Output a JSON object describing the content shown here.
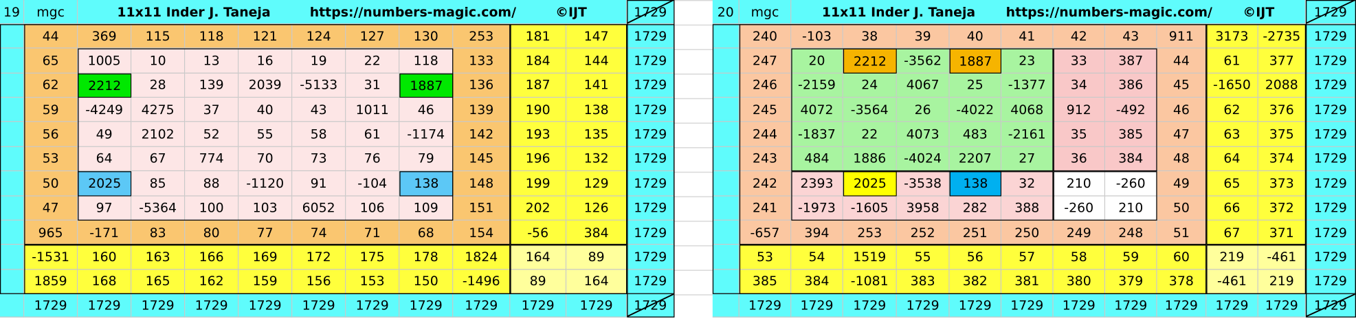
{
  "grids": [
    {
      "index": "19",
      "label": "mgc",
      "title": [
        "11x11 Inder J. Taneja",
        "https://numbers-magic.com/",
        "©IJT"
      ],
      "corner": "1729",
      "rows": [
        [
          44,
          369,
          115,
          118,
          121,
          124,
          127,
          130,
          253,
          181,
          147,
          1729
        ],
        [
          65,
          1005,
          10,
          13,
          16,
          19,
          22,
          118,
          133,
          184,
          144,
          1729
        ],
        [
          62,
          2212,
          28,
          139,
          2039,
          -5133,
          31,
          1887,
          136,
          187,
          141,
          1729
        ],
        [
          59,
          -4249,
          4275,
          37,
          40,
          43,
          1011,
          46,
          139,
          190,
          138,
          1729
        ],
        [
          56,
          49,
          2102,
          52,
          55,
          58,
          61,
          -1174,
          142,
          193,
          135,
          1729
        ],
        [
          53,
          64,
          67,
          774,
          70,
          73,
          76,
          79,
          145,
          196,
          132,
          1729
        ],
        [
          50,
          2025,
          85,
          88,
          -1120,
          91,
          -104,
          138,
          148,
          199,
          129,
          1729
        ],
        [
          47,
          97,
          -5364,
          100,
          103,
          6052,
          106,
          109,
          151,
          202,
          126,
          1729
        ],
        [
          965,
          -171,
          83,
          80,
          77,
          74,
          71,
          68,
          154,
          -56,
          384,
          1729
        ],
        [
          -1531,
          160,
          163,
          166,
          169,
          172,
          175,
          178,
          1824,
          164,
          89,
          1729
        ],
        [
          1859,
          168,
          165,
          162,
          159,
          156,
          153,
          150,
          -1496,
          89,
          164,
          1729
        ]
      ],
      "totals": [
        1729,
        1729,
        1729,
        1729,
        1729,
        1729,
        1729,
        1729,
        1729,
        1729,
        1729,
        1729
      ]
    },
    {
      "index": "20",
      "label": "mgc",
      "title": [
        "11x11 Inder J. Taneja",
        "https://numbers-magic.com/",
        "©IJT"
      ],
      "corner": "1729",
      "rows": [
        [
          240,
          -103,
          38,
          39,
          40,
          41,
          42,
          43,
          911,
          3173,
          -2735,
          1729
        ],
        [
          247,
          20,
          2212,
          -3562,
          1887,
          23,
          33,
          387,
          44,
          61,
          377,
          1729
        ],
        [
          246,
          -2159,
          24,
          4067,
          25,
          -1377,
          34,
          386,
          45,
          -1650,
          2088,
          1729
        ],
        [
          245,
          4072,
          -3564,
          26,
          -4022,
          4068,
          912,
          -492,
          46,
          62,
          376,
          1729
        ],
        [
          244,
          -1837,
          22,
          4073,
          483,
          -2161,
          35,
          385,
          47,
          63,
          375,
          1729
        ],
        [
          243,
          484,
          1886,
          -4024,
          2207,
          27,
          36,
          384,
          48,
          64,
          374,
          1729
        ],
        [
          242,
          2393,
          2025,
          -3538,
          138,
          32,
          210,
          -260,
          49,
          65,
          373,
          1729
        ],
        [
          241,
          -1973,
          -1605,
          3958,
          282,
          388,
          -260,
          210,
          50,
          66,
          372,
          1729
        ],
        [
          -657,
          394,
          253,
          252,
          251,
          250,
          249,
          248,
          51,
          67,
          371,
          1729
        ],
        [
          53,
          54,
          1519,
          55,
          56,
          57,
          58,
          59,
          60,
          219,
          -461,
          1729
        ],
        [
          385,
          384,
          -1081,
          383,
          382,
          381,
          380,
          379,
          378,
          -461,
          219,
          1729
        ]
      ],
      "totals": [
        1729,
        1729,
        1729,
        1729,
        1729,
        1729,
        1729,
        1729,
        1729,
        1729,
        1729,
        1729
      ]
    }
  ]
}
